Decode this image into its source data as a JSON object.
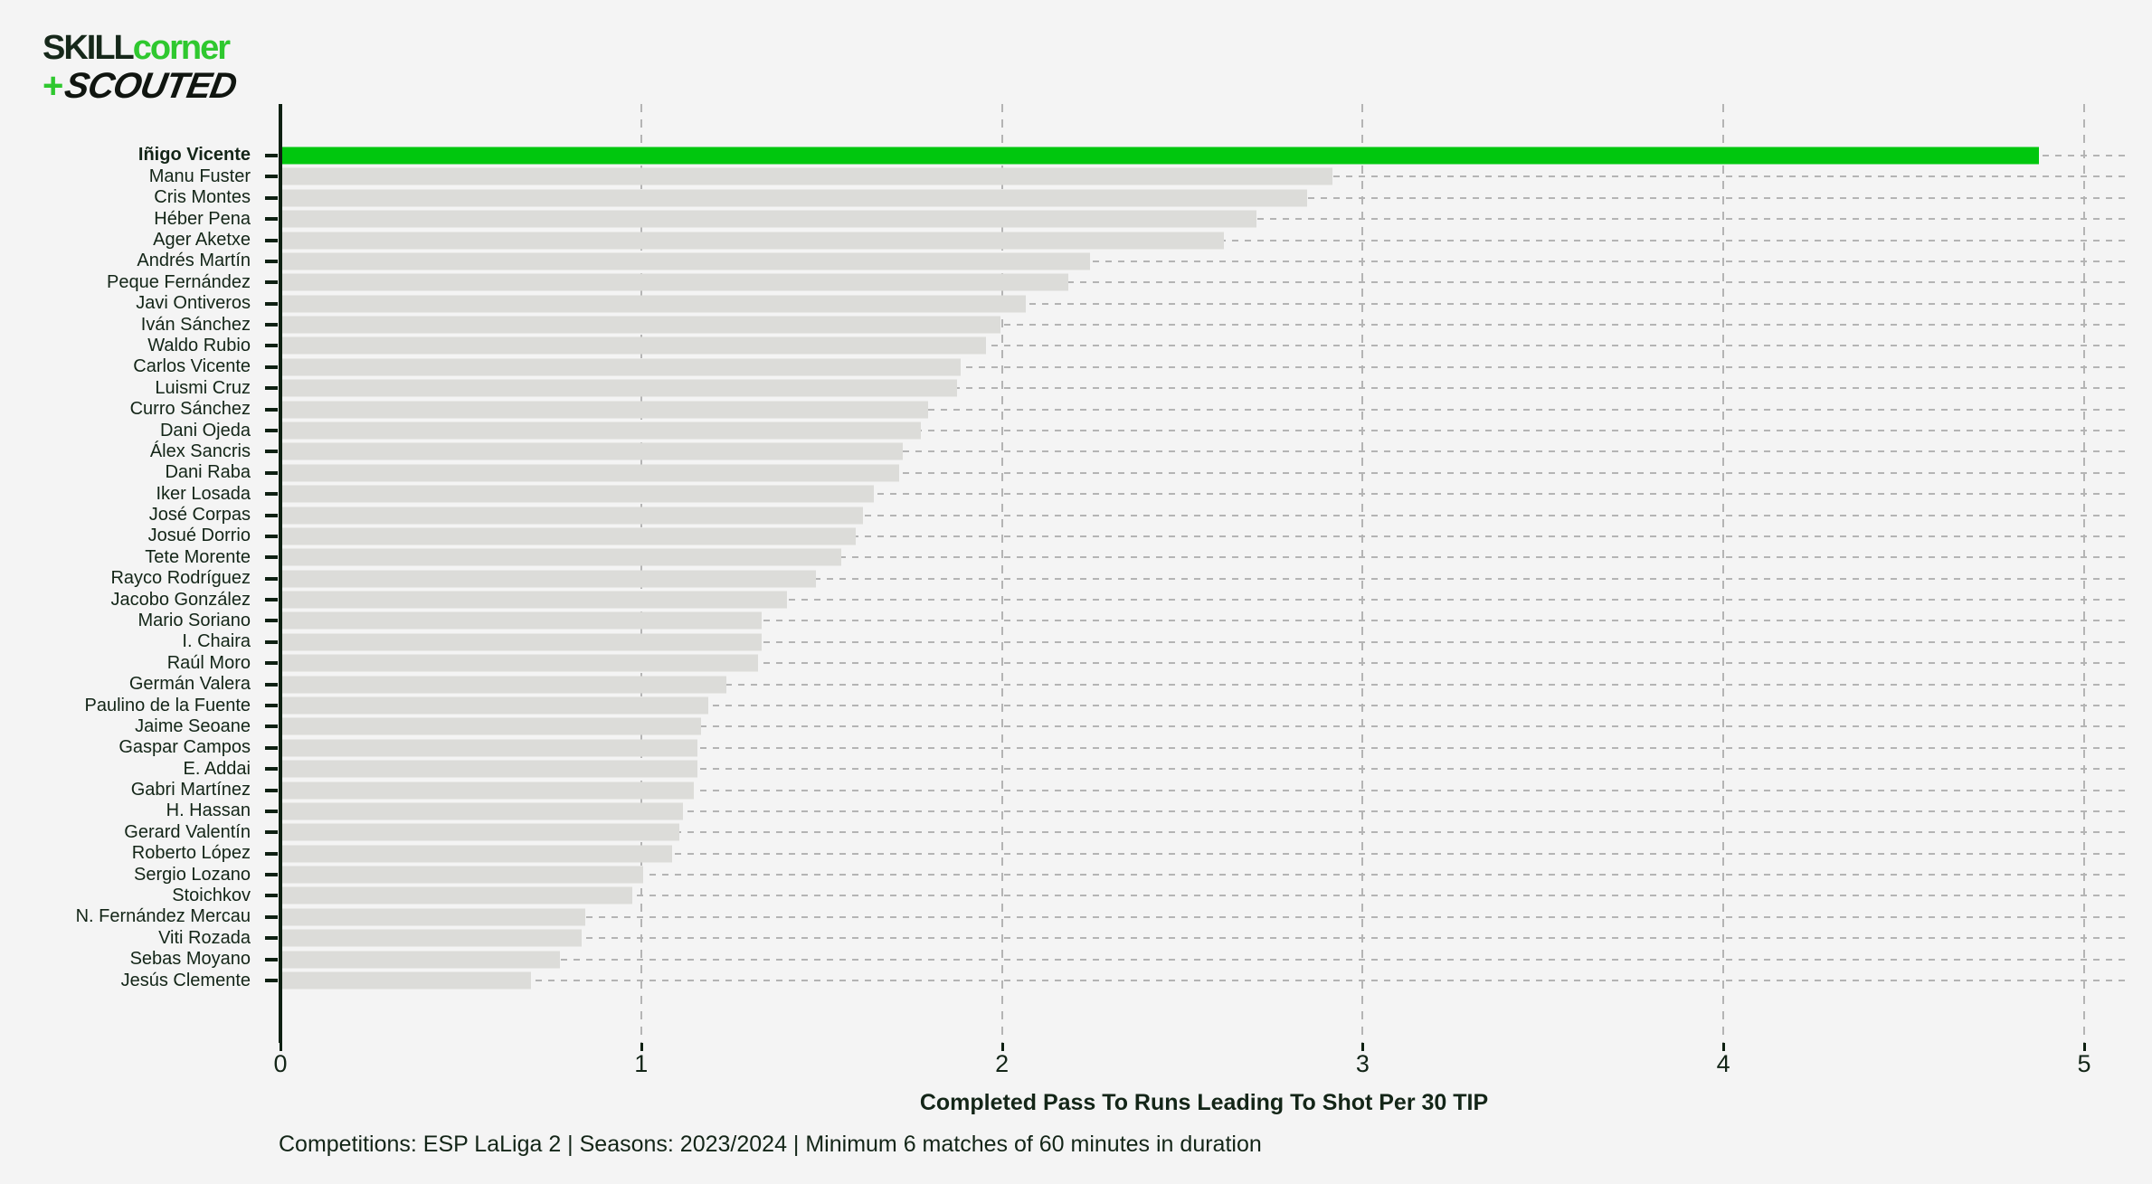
{
  "logo": {
    "skill": "SKILL",
    "corner": "corner",
    "plus": "+",
    "scouted": "SCOUTED"
  },
  "chart_data": {
    "type": "bar",
    "orientation": "horizontal",
    "xlabel": "Completed Pass To Runs Leading To Shot Per 30 TIP",
    "xticks": [
      0,
      1,
      2,
      3,
      4,
      5
    ],
    "xlim": [
      0,
      5.12
    ],
    "grid": "dashed",
    "legend": "none",
    "highlight_index": 0,
    "highlight_color": "#00c70e",
    "bar_color": "#dcdcd9",
    "background_color": "#f4f4f4",
    "players": [
      {
        "name": "Iñigo Vicente",
        "value": 4.87
      },
      {
        "name": "Manu Fuster",
        "value": 2.91
      },
      {
        "name": "Cris Montes",
        "value": 2.84
      },
      {
        "name": "Héber Pena",
        "value": 2.7
      },
      {
        "name": "Ager Aketxe",
        "value": 2.61
      },
      {
        "name": "Andrés Martín",
        "value": 2.24
      },
      {
        "name": "Peque Fernández",
        "value": 2.18
      },
      {
        "name": "Javi Ontiveros",
        "value": 2.06
      },
      {
        "name": "Iván Sánchez",
        "value": 1.99
      },
      {
        "name": "Waldo Rubio",
        "value": 1.95
      },
      {
        "name": "Carlos Vicente",
        "value": 1.88
      },
      {
        "name": "Luismi Cruz",
        "value": 1.87
      },
      {
        "name": "Curro Sánchez",
        "value": 1.79
      },
      {
        "name": "Dani Ojeda",
        "value": 1.77
      },
      {
        "name": "Álex Sancris",
        "value": 1.72
      },
      {
        "name": "Dani Raba",
        "value": 1.71
      },
      {
        "name": "Iker Losada",
        "value": 1.64
      },
      {
        "name": "José Corpas",
        "value": 1.61
      },
      {
        "name": "Josué Dorrio",
        "value": 1.59
      },
      {
        "name": "Tete Morente",
        "value": 1.55
      },
      {
        "name": "Rayco Rodríguez",
        "value": 1.48
      },
      {
        "name": "Jacobo González",
        "value": 1.4
      },
      {
        "name": "Mario Soriano",
        "value": 1.33
      },
      {
        "name": "I. Chaira",
        "value": 1.33
      },
      {
        "name": "Raúl Moro",
        "value": 1.32
      },
      {
        "name": "Germán Valera",
        "value": 1.23
      },
      {
        "name": "Paulino de la Fuente",
        "value": 1.18
      },
      {
        "name": "Jaime Seoane",
        "value": 1.16
      },
      {
        "name": "Gaspar Campos",
        "value": 1.15
      },
      {
        "name": "E. Addai",
        "value": 1.15
      },
      {
        "name": "Gabri Martínez",
        "value": 1.14
      },
      {
        "name": "H. Hassan",
        "value": 1.11
      },
      {
        "name": "Gerard Valentín",
        "value": 1.1
      },
      {
        "name": "Roberto López",
        "value": 1.08
      },
      {
        "name": "Sergio Lozano",
        "value": 1.0
      },
      {
        "name": "Stoichkov",
        "value": 0.97
      },
      {
        "name": "N. Fernández Mercau",
        "value": 0.84
      },
      {
        "name": "Viti Rozada",
        "value": 0.83
      },
      {
        "name": "Sebas Moyano",
        "value": 0.77
      },
      {
        "name": "Jesús Clemente",
        "value": 0.69
      }
    ]
  },
  "footer": {
    "text": "Competitions: ESP LaLiga 2 | Seasons: 2023/2024 | Minimum 6 matches of 60 minutes in duration"
  }
}
